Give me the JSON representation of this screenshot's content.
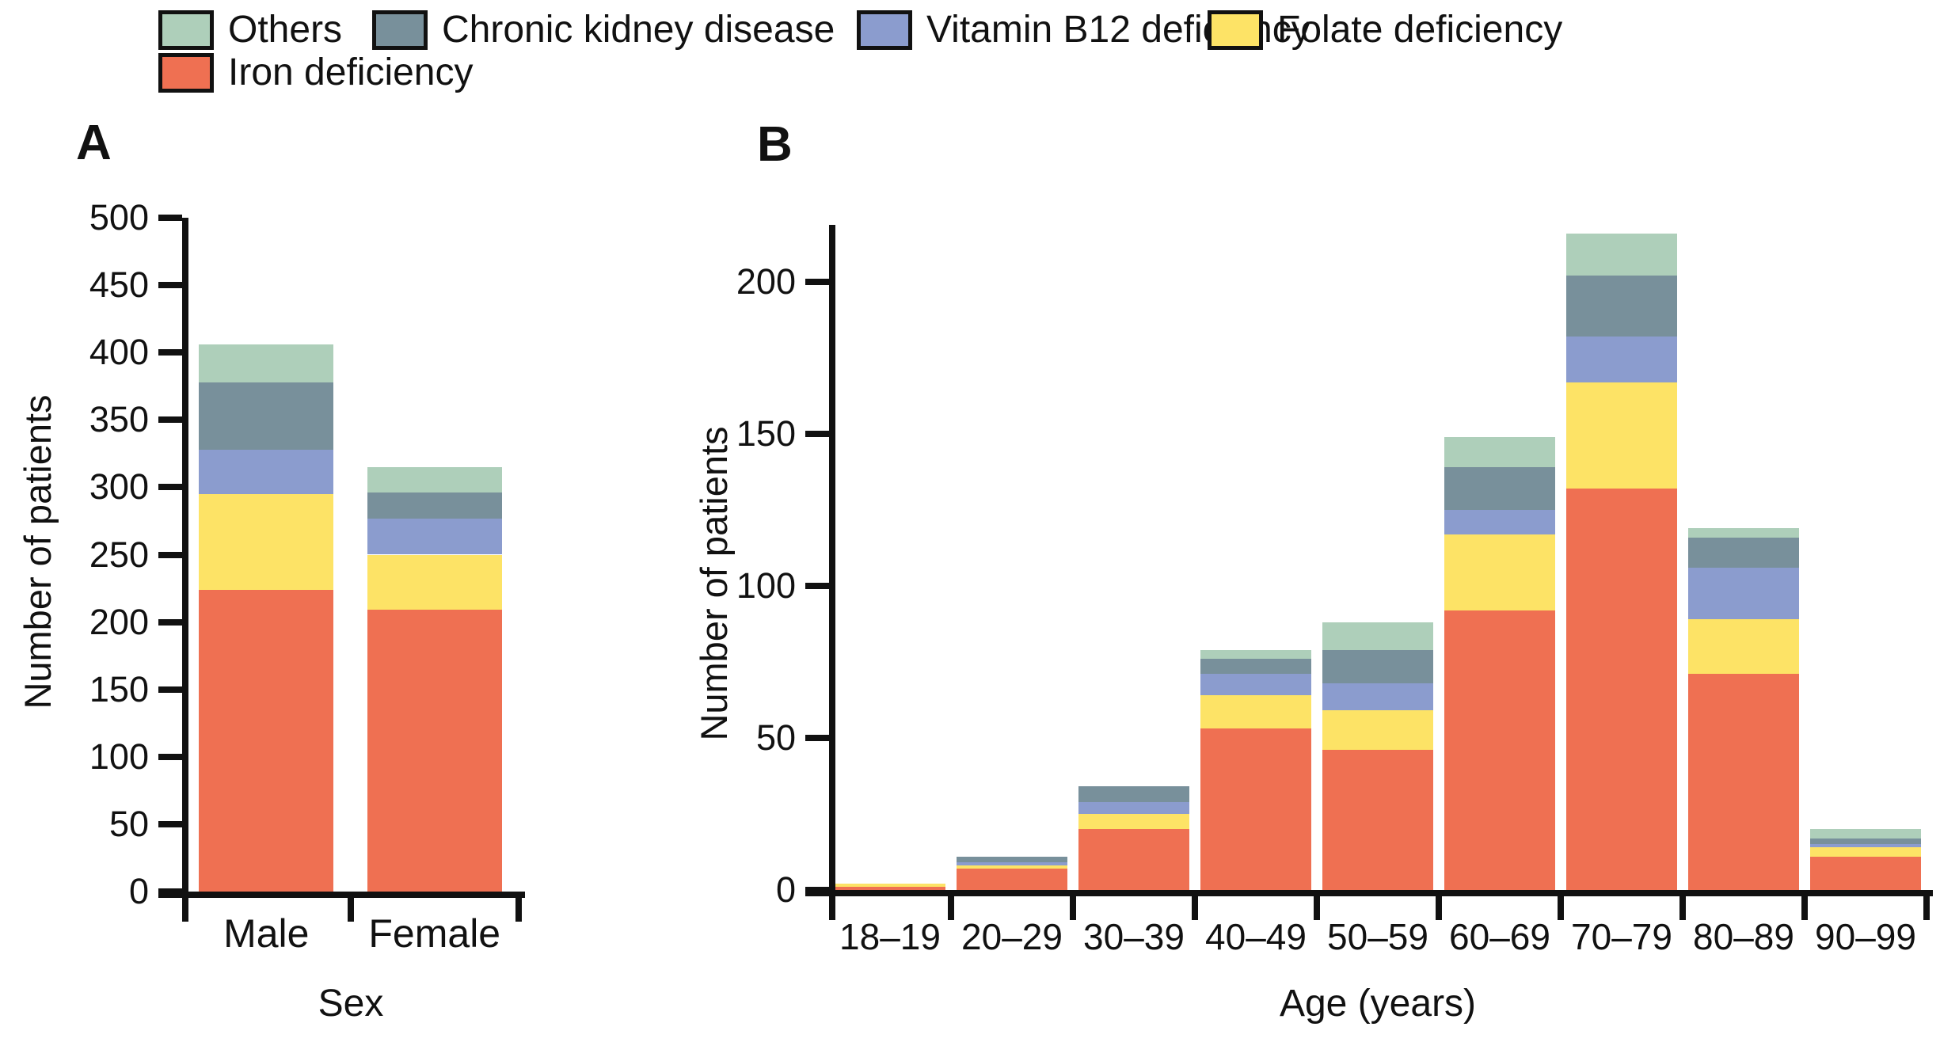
{
  "figure": {
    "background": "#ffffff",
    "text_color": "#111111"
  },
  "legend": {
    "swatch_border_color": "#111111",
    "items": [
      {
        "label": "Others",
        "color": "#aecfba"
      },
      {
        "label": "Chronic kidney disease",
        "color": "#78909b"
      },
      {
        "label": "Vitamin B12 deficiency",
        "color": "#8b9cce"
      },
      {
        "label": "Folate deficiency",
        "color": "#fde366"
      },
      {
        "label": "Iron deficiency",
        "color": "#ef7052"
      }
    ]
  },
  "chart_data": [
    {
      "id": "A",
      "type": "bar",
      "stacked": true,
      "title": "A",
      "xlabel": "Sex",
      "ylabel": "Number of patients",
      "ylim": [
        0,
        500
      ],
      "yticks": [
        0,
        50,
        100,
        150,
        200,
        250,
        300,
        350,
        400,
        450,
        500
      ],
      "grid": false,
      "legend_position": "top",
      "categories": [
        "Male",
        "Female"
      ],
      "series": [
        {
          "name": "Iron deficiency",
          "color": "#ef7052",
          "values": [
            224,
            209
          ]
        },
        {
          "name": "Folate deficiency",
          "color": "#fde366",
          "values": [
            71,
            41
          ]
        },
        {
          "name": "Vitamin B12 deficiency",
          "color": "#8b9cce",
          "values": [
            33,
            27
          ]
        },
        {
          "name": "Chronic kidney disease",
          "color": "#78909b",
          "values": [
            50,
            19
          ]
        },
        {
          "name": "Others",
          "color": "#aecfba",
          "values": [
            28,
            19
          ]
        }
      ]
    },
    {
      "id": "B",
      "type": "bar",
      "stacked": true,
      "title": "B",
      "xlabel": "Age (years)",
      "ylabel": "Number of patients",
      "ylim": [
        0,
        220
      ],
      "yticks": [
        0,
        50,
        100,
        150,
        200
      ],
      "grid": false,
      "legend_position": "top",
      "categories": [
        "18–19",
        "20–29",
        "30–39",
        "40–49",
        "50–59",
        "60–69",
        "70–79",
        "80–89",
        "90–99"
      ],
      "series": [
        {
          "name": "Iron deficiency",
          "color": "#ef7052",
          "values": [
            1,
            7,
            20,
            53,
            46,
            92,
            132,
            71,
            11
          ]
        },
        {
          "name": "Folate deficiency",
          "color": "#fde366",
          "values": [
            1,
            1,
            5,
            11,
            13,
            25,
            35,
            18,
            3
          ]
        },
        {
          "name": "Vitamin B12 deficiency",
          "color": "#8b9cce",
          "values": [
            0,
            1,
            4,
            7,
            9,
            8,
            15,
            17,
            1
          ]
        },
        {
          "name": "Chronic kidney disease",
          "color": "#78909b",
          "values": [
            0,
            2,
            5,
            5,
            11,
            14,
            20,
            10,
            2
          ]
        },
        {
          "name": "Others",
          "color": "#aecfba",
          "values": [
            0,
            0,
            0,
            3,
            9,
            10,
            14,
            3,
            3
          ]
        }
      ]
    }
  ]
}
